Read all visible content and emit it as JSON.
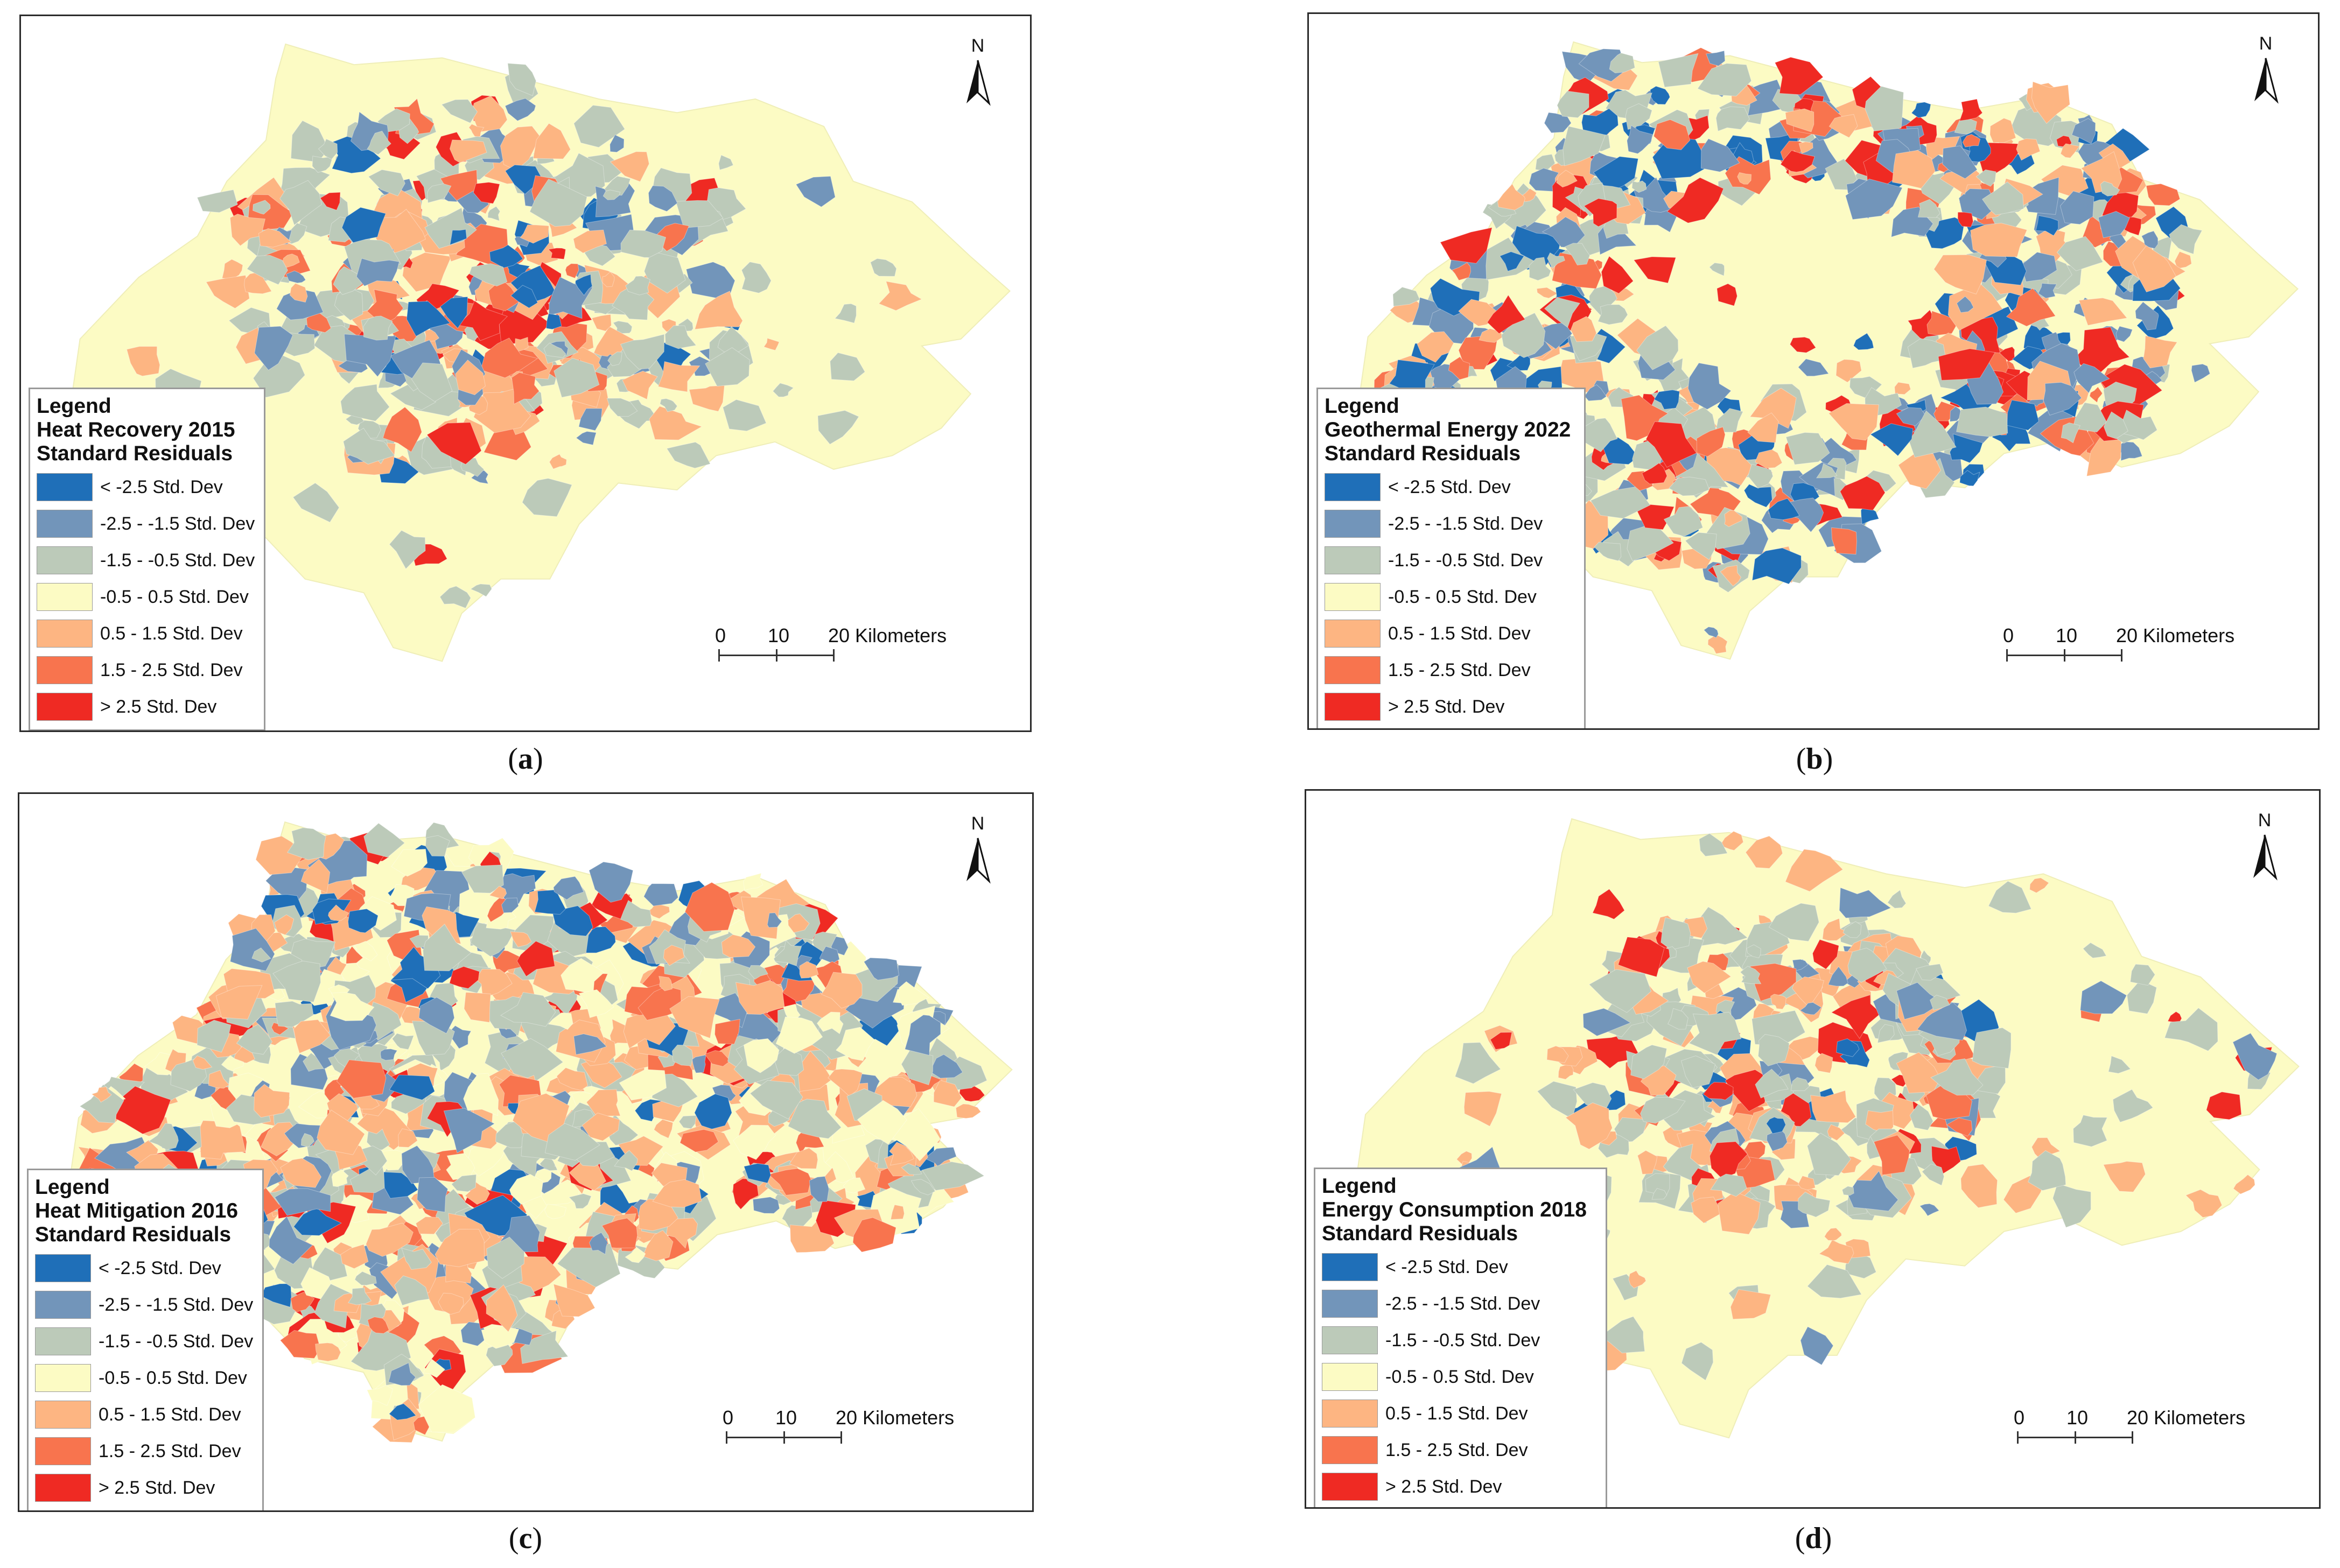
{
  "legend_classes": [
    {
      "label": "< -2.5 Std. Dev",
      "color": "#1f6fb8"
    },
    {
      "label": "-2.5 - -1.5 Std. Dev",
      "color": "#7295ba"
    },
    {
      "label": "-1.5 - -0.5 Std. Dev",
      "color": "#bccab9"
    },
    {
      "label": "-0.5 - 0.5 Std. Dev",
      "color": "#fcfbc4"
    },
    {
      "label": "0.5 - 1.5 Std. Dev",
      "color": "#fdb582"
    },
    {
      "label": "1.5 - 2.5 Std. Dev",
      "color": "#f8744e"
    },
    {
      "label": "> 2.5 Std. Dev",
      "color": "#ef2a23"
    }
  ],
  "region_color": "#fcfbc4",
  "panels": [
    {
      "id": "a",
      "caption": "a",
      "legend_heading": "Legend",
      "legend_title_1": "Heat Recovery 2015",
      "legend_title_2": "Standard Residuals",
      "north_label": "N",
      "scale": {
        "t0": "0",
        "t1": "10",
        "t2": "20 Kilometers"
      },
      "pattern": "central"
    },
    {
      "id": "b",
      "caption": "b",
      "legend_heading": "Legend",
      "legend_title_1": "Geothermal Energy 2022",
      "legend_title_2": "Standard Residuals",
      "north_label": "N",
      "scale": {
        "t0": "0",
        "t1": "10",
        "t2": "20 Kilometers"
      },
      "pattern": "ring"
    },
    {
      "id": "c",
      "caption": "c",
      "legend_heading": "Legend",
      "legend_title_1": "Heat Mitigation 2016",
      "legend_title_2": "Standard Residuals",
      "north_label": "N",
      "scale": {
        "t0": "0",
        "t1": "10",
        "t2": "20 Kilometers"
      },
      "pattern": "full"
    },
    {
      "id": "d",
      "caption": "d",
      "legend_heading": "Legend",
      "legend_title_1": "Energy Consumption 2018",
      "legend_title_2": "Standard Residuals",
      "north_label": "N",
      "scale": {
        "t0": "0",
        "t1": "10",
        "t2": "20 Kilometers"
      },
      "pattern": "scattered"
    }
  ]
}
